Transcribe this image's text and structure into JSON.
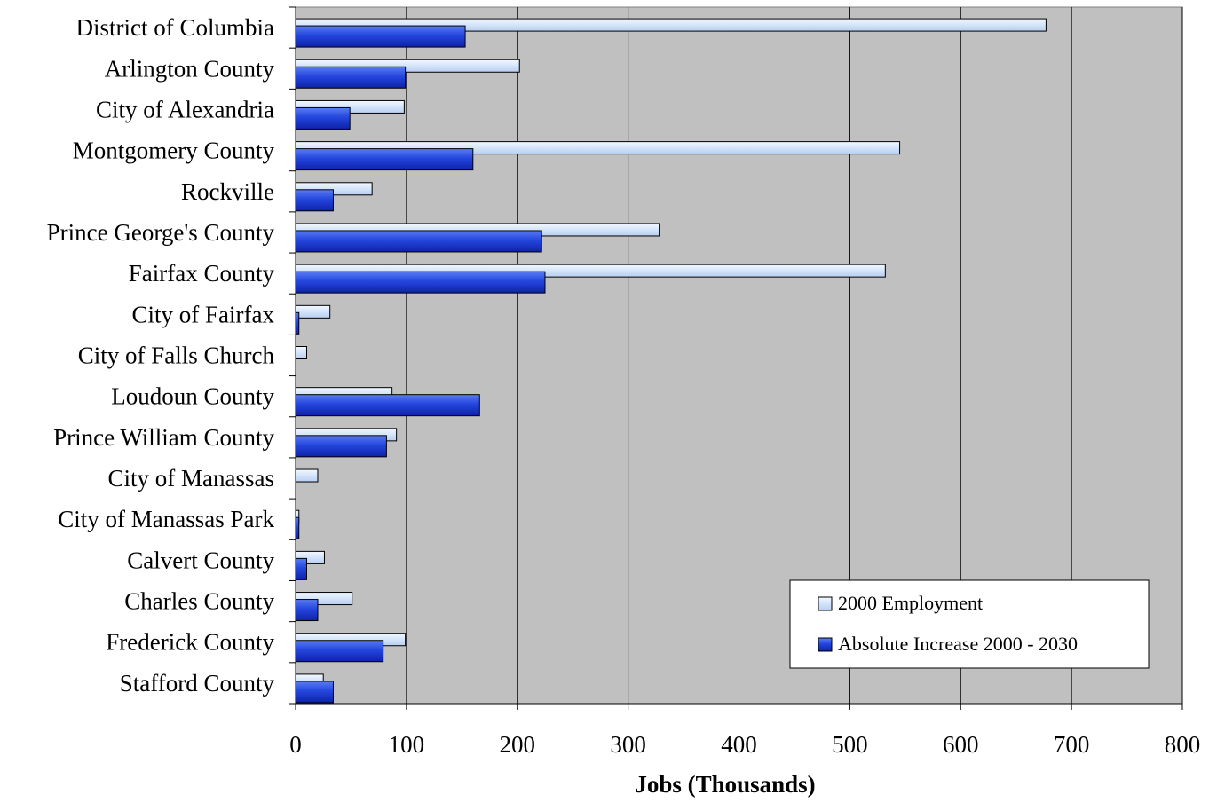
{
  "chart_data": {
    "type": "bar",
    "orientation": "horizontal",
    "title": "",
    "xlabel": "Jobs (Thousands)",
    "ylabel": "",
    "xlim": [
      0,
      800
    ],
    "xticks": [
      0,
      100,
      200,
      300,
      400,
      500,
      600,
      700,
      800
    ],
    "grid": "vertical",
    "legend_position": "bottom-right",
    "plot_background": "#c0c0c0",
    "categories": [
      "District of Columbia",
      "Arlington County",
      "City of Alexandria",
      "Montgomery County",
      "Rockville",
      "Prince George's County",
      "Fairfax County",
      "City of Fairfax",
      "City of Falls Church",
      "Loudoun County",
      "Prince William County",
      "City of Manassas",
      "City of Manassas Park",
      "Calvert County",
      "Charles County",
      "Frederick County",
      "Stafford County"
    ],
    "series": [
      {
        "name": "2000 Employment",
        "color": "#dce9fa",
        "values": [
          677,
          202,
          98,
          545,
          69,
          328,
          532,
          31,
          10,
          87,
          91,
          20,
          3,
          26,
          51,
          99,
          25
        ]
      },
      {
        "name": "Absolute Increase 2000 - 2030",
        "color": "#2244dd",
        "values": [
          153,
          99,
          49,
          160,
          34,
          222,
          225,
          3,
          0,
          166,
          82,
          0,
          3,
          10,
          20,
          79,
          34
        ]
      }
    ]
  }
}
